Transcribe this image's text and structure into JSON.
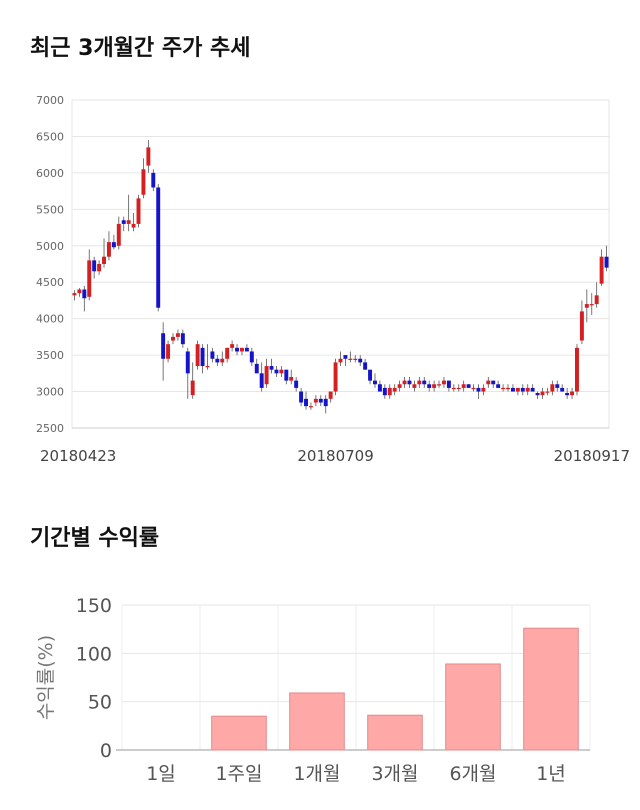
{
  "sections": {
    "price_title": "최근 3개월간 주가 추세",
    "return_title": "기간별 수익률"
  },
  "chart_data": [
    {
      "type": "candlestick",
      "title": "최근 3개월간 주가 추세",
      "ylim": [
        2500,
        7000
      ],
      "yticks": [
        2500,
        3000,
        3500,
        4000,
        4500,
        5000,
        5500,
        6000,
        6500,
        7000
      ],
      "xtick_labels": [
        "20180423",
        "20180709",
        "20180917"
      ],
      "xtick_index": [
        0,
        53,
        103
      ],
      "up_color": "#d42020",
      "down_color": "#1414c8",
      "grid": true,
      "candles": [
        [
          4320,
          4390,
          4250,
          4350
        ],
        [
          4350,
          4420,
          4300,
          4400
        ],
        [
          4400,
          4450,
          4100,
          4280
        ],
        [
          4300,
          4950,
          4250,
          4800
        ],
        [
          4800,
          4850,
          4550,
          4650
        ],
        [
          4650,
          4800,
          4600,
          4750
        ],
        [
          4750,
          5100,
          4700,
          4850
        ],
        [
          4850,
          5200,
          4800,
          5050
        ],
        [
          5050,
          5150,
          4950,
          4980
        ],
        [
          5000,
          5400,
          4950,
          5300
        ],
        [
          5350,
          5400,
          5200,
          5300
        ],
        [
          5300,
          5700,
          5200,
          5350
        ],
        [
          5250,
          5450,
          5200,
          5300
        ],
        [
          5300,
          5700,
          5250,
          5650
        ],
        [
          5700,
          6200,
          5650,
          6050
        ],
        [
          6100,
          6450,
          6000,
          6350
        ],
        [
          6000,
          6050,
          5750,
          5800
        ],
        [
          5800,
          5850,
          4100,
          4150
        ],
        [
          3800,
          3950,
          3150,
          3450
        ],
        [
          3450,
          3700,
          3400,
          3650
        ],
        [
          3700,
          3800,
          3650,
          3750
        ],
        [
          3750,
          3850,
          3700,
          3800
        ],
        [
          3800,
          3850,
          3600,
          3650
        ],
        [
          3550,
          3600,
          2900,
          3250
        ],
        [
          2950,
          3400,
          2900,
          3150
        ],
        [
          3350,
          3700,
          3300,
          3650
        ],
        [
          3600,
          3650,
          3250,
          3350
        ],
        [
          3350,
          3650,
          3300,
          3350
        ],
        [
          3550,
          3600,
          3400,
          3450
        ],
        [
          3450,
          3500,
          3350,
          3400
        ],
        [
          3400,
          3550,
          3350,
          3450
        ],
        [
          3450,
          3600,
          3400,
          3600
        ],
        [
          3600,
          3700,
          3550,
          3650
        ],
        [
          3600,
          3650,
          3500,
          3550
        ],
        [
          3550,
          3600,
          3500,
          3600
        ],
        [
          3600,
          3650,
          3550,
          3550
        ],
        [
          3550,
          3600,
          3350,
          3400
        ],
        [
          3380,
          3450,
          3250,
          3250
        ],
        [
          3250,
          3400,
          3000,
          3050
        ],
        [
          3100,
          3450,
          3050,
          3350
        ],
        [
          3350,
          3450,
          3250,
          3300
        ],
        [
          3300,
          3350,
          3200,
          3250
        ],
        [
          3250,
          3350,
          3200,
          3300
        ],
        [
          3300,
          3300,
          3100,
          3150
        ],
        [
          3150,
          3300,
          3100,
          3200
        ],
        [
          3150,
          3200,
          3000,
          3050
        ],
        [
          3000,
          3050,
          2800,
          2850
        ],
        [
          2900,
          3000,
          2750,
          2800
        ],
        [
          2800,
          2850,
          2750,
          2800
        ],
        [
          2850,
          2950,
          2800,
          2900
        ],
        [
          2900,
          2950,
          2800,
          2850
        ],
        [
          2900,
          2950,
          2700,
          2800
        ],
        [
          2900,
          3000,
          2850,
          3000
        ],
        [
          3000,
          3450,
          2950,
          3400
        ],
        [
          3400,
          3550,
          3350,
          3450
        ],
        [
          3500,
          3500,
          3350,
          3450
        ],
        [
          3450,
          3550,
          3400,
          3450
        ],
        [
          3450,
          3500,
          3400,
          3450
        ],
        [
          3450,
          3500,
          3350,
          3400
        ],
        [
          3400,
          3450,
          3300,
          3300
        ],
        [
          3300,
          3300,
          3100,
          3150
        ],
        [
          3150,
          3250,
          3050,
          3100
        ],
        [
          3100,
          3150,
          3000,
          3000
        ],
        [
          3050,
          3100,
          2900,
          2950
        ],
        [
          2950,
          3100,
          2900,
          3050
        ],
        [
          3000,
          3100,
          2950,
          3050
        ],
        [
          3050,
          3150,
          3000,
          3100
        ],
        [
          3100,
          3200,
          3050,
          3150
        ],
        [
          3150,
          3200,
          3050,
          3100
        ],
        [
          3050,
          3150,
          3000,
          3100
        ],
        [
          3100,
          3200,
          3050,
          3150
        ],
        [
          3150,
          3200,
          3050,
          3100
        ],
        [
          3100,
          3150,
          3000,
          3050
        ],
        [
          3050,
          3150,
          3000,
          3100
        ],
        [
          3100,
          3150,
          3050,
          3100
        ],
        [
          3100,
          3200,
          3050,
          3150
        ],
        [
          3150,
          3150,
          3000,
          3050
        ],
        [
          3050,
          3100,
          3000,
          3050
        ],
        [
          3050,
          3100,
          3000,
          3050
        ],
        [
          3050,
          3150,
          3000,
          3100
        ],
        [
          3100,
          3100,
          3050,
          3050
        ],
        [
          3050,
          3100,
          3000,
          3050
        ],
        [
          3050,
          3100,
          2900,
          3000
        ],
        [
          3000,
          3100,
          2950,
          3050
        ],
        [
          3100,
          3200,
          3050,
          3150
        ],
        [
          3150,
          3150,
          3050,
          3100
        ],
        [
          3100,
          3150,
          3050,
          3050
        ],
        [
          3050,
          3100,
          3000,
          3050
        ],
        [
          3050,
          3100,
          3000,
          3050
        ],
        [
          3050,
          3100,
          3000,
          3000
        ],
        [
          3000,
          3050,
          2950,
          3050
        ],
        [
          3050,
          3100,
          2950,
          3000
        ],
        [
          3000,
          3100,
          2950,
          3050
        ],
        [
          3050,
          3100,
          3000,
          3000
        ],
        [
          2980,
          3000,
          2900,
          2950
        ],
        [
          2950,
          3050,
          2900,
          3000
        ],
        [
          3000,
          3050,
          2950,
          3000
        ],
        [
          3000,
          3150,
          2950,
          3100
        ],
        [
          3100,
          3150,
          3000,
          3050
        ],
        [
          3050,
          3100,
          3000,
          3000
        ],
        [
          2980,
          3050,
          2900,
          2950
        ],
        [
          2950,
          3050,
          2900,
          3000
        ],
        [
          3000,
          3650,
          2950,
          3600
        ],
        [
          3700,
          4250,
          3650,
          4100
        ],
        [
          4150,
          4400,
          3950,
          4200
        ],
        [
          4200,
          4350,
          4050,
          4200
        ],
        [
          4200,
          4500,
          4150,
          4320
        ],
        [
          4480,
          4950,
          4450,
          4850
        ],
        [
          4850,
          5000,
          4650,
          4700
        ]
      ]
    },
    {
      "type": "bar",
      "title": "기간별 수익률",
      "categories": [
        "1일",
        "1주일",
        "1개월",
        "3개월",
        "6개월",
        "1년"
      ],
      "values": [
        0,
        35,
        59,
        36,
        89,
        126
      ],
      "ylabel": "수익률(%)",
      "ylim": [
        0,
        150
      ],
      "yticks": [
        0,
        50,
        100,
        150
      ],
      "bar_color": "#ffa8a8",
      "bar_edge_color": "#e28a8a",
      "grid": true
    }
  ]
}
